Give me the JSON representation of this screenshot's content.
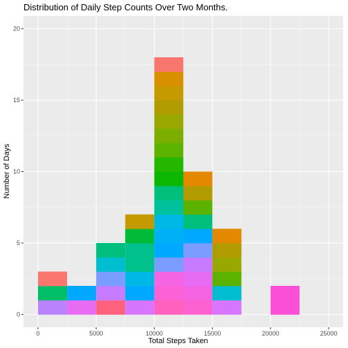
{
  "chart_data": {
    "type": "bar",
    "subtype": "stacked-histogram",
    "title": "Distribution of Daily Step Counts Over Two Months.",
    "xlabel": "Total Steps Taken",
    "ylabel": "Number of Days",
    "xlim": [
      -1250,
      26250
    ],
    "ylim": [
      -0.9,
      20.9
    ],
    "x_ticks": [
      0,
      5000,
      10000,
      15000,
      20000,
      25000
    ],
    "x_tick_labels": [
      "0",
      "5000",
      "10000",
      "15000",
      "20000",
      "25000"
    ],
    "y_ticks": [
      0,
      5,
      10,
      15,
      20
    ],
    "y_tick_labels": [
      "0",
      "5",
      "10",
      "15",
      "20"
    ],
    "grid": true,
    "legend": "none",
    "colors": {
      "panel_background": "#ebebeb",
      "grid_major": "#ffffff",
      "grid_minor": "#f5f5f5"
    },
    "bins": [
      {
        "x0": 0,
        "x1": 2500,
        "count": 3,
        "colors": [
          "#b983ff",
          "#00be67",
          "#f8766d"
        ]
      },
      {
        "x0": 2500,
        "x1": 5000,
        "count": 2,
        "colors": [
          "#e76bf3",
          "#00a9ff"
        ]
      },
      {
        "x0": 5000,
        "x1": 7500,
        "count": 5,
        "colors": [
          "#fd617c",
          "#c77cff",
          "#7b9dff",
          "#00bdd0",
          "#00bf7d"
        ]
      },
      {
        "x0": 7500,
        "x1": 10000,
        "count": 7,
        "colors": [
          "#d875ff",
          "#00a9ff",
          "#00b8e5",
          "#00c08b",
          "#00c08b",
          "#00ba38",
          "#c49a00"
        ]
      },
      {
        "x0": 10000,
        "x1": 12500,
        "count": 18,
        "colors": [
          "#ff62bc",
          "#fc61d5",
          "#f564e3",
          "#7b9dff",
          "#00a9ff",
          "#00b0f6",
          "#00b8e5",
          "#00c19c",
          "#00bf7d",
          "#0cb702",
          "#24b700",
          "#5bb300",
          "#7cae00",
          "#99a800",
          "#b09c00",
          "#c49a00",
          "#d89000",
          "#f8766d"
        ]
      },
      {
        "x0": 12500,
        "x1": 15000,
        "count": 10,
        "colors": [
          "#fd61d1",
          "#f564e3",
          "#e76bf3",
          "#c77cff",
          "#7b9dff",
          "#00a9ff",
          "#00bf7d",
          "#5bb300",
          "#b09c00",
          "#e38900"
        ]
      },
      {
        "x0": 15000,
        "x1": 17500,
        "count": 6,
        "colors": [
          "#d875ff",
          "#00bdd0",
          "#5bb300",
          "#99a800",
          "#b09c00",
          "#e38900"
        ]
      },
      {
        "x0": 17500,
        "x1": 20000,
        "count": 0,
        "colors": []
      },
      {
        "x0": 20000,
        "x1": 22500,
        "count": 2,
        "colors": [
          "#fb4fd8",
          "#fb4fd8"
        ]
      },
      {
        "x0": 22500,
        "x1": 25000,
        "count": 0,
        "colors": []
      }
    ]
  }
}
